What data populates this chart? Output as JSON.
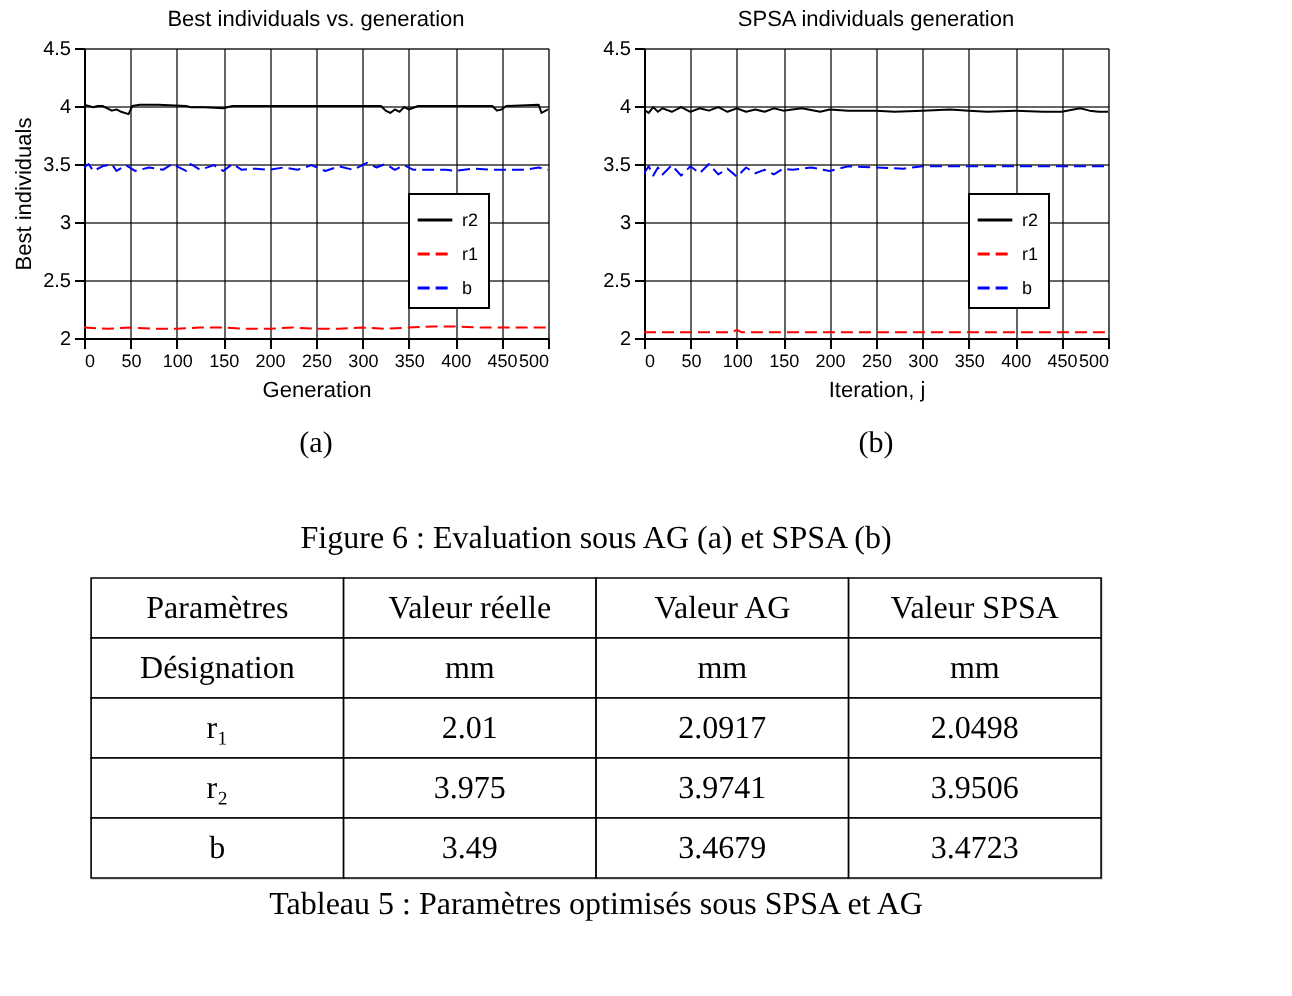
{
  "chart_data": [
    {
      "type": "line",
      "title": "Best individuals vs. generation",
      "xlabel": "Generation",
      "ylabel": "Best individuals",
      "xlim": [
        0,
        500
      ],
      "xticks": [
        0,
        50,
        100,
        150,
        200,
        250,
        300,
        350,
        400,
        450,
        500
      ],
      "ylim": [
        2,
        4.5
      ],
      "yticks": [
        2,
        2.5,
        3,
        3.5,
        4,
        4.5
      ],
      "grid": true,
      "legend": "right",
      "series": [
        {
          "name": "r2",
          "color": "#000000",
          "line_style": "solid",
          "x": [
            0,
            10,
            15,
            20,
            30,
            35,
            40,
            48,
            52,
            60,
            80,
            110,
            115,
            130,
            150,
            160,
            200,
            250,
            300,
            320,
            325,
            330,
            335,
            340,
            345,
            350,
            360,
            400,
            440,
            445,
            450,
            455,
            490,
            493,
            500
          ],
          "values": [
            4.01,
            3.99,
            4.0,
            4.0,
            3.96,
            3.97,
            3.95,
            3.93,
            4.0,
            4.01,
            4.01,
            4.0,
            3.99,
            3.99,
            3.98,
            4.0,
            4.0,
            4.0,
            4.0,
            4.0,
            3.96,
            3.94,
            3.97,
            3.95,
            3.99,
            3.97,
            4.0,
            4.0,
            4.0,
            3.96,
            3.97,
            4.0,
            4.01,
            3.94,
            3.97
          ]
        },
        {
          "name": "r1",
          "color": "#ff0000",
          "line_style": "dashed",
          "x": [
            0,
            25,
            50,
            75,
            100,
            125,
            150,
            175,
            200,
            225,
            250,
            275,
            300,
            325,
            350,
            375,
            400,
            425,
            450,
            475,
            500
          ],
          "values": [
            2.09,
            2.08,
            2.09,
            2.08,
            2.08,
            2.09,
            2.09,
            2.08,
            2.08,
            2.09,
            2.08,
            2.08,
            2.09,
            2.08,
            2.09,
            2.1,
            2.1,
            2.09,
            2.09,
            2.09,
            2.09
          ]
        },
        {
          "name": "b",
          "color": "#0000ff",
          "line_style": "dashed",
          "x": [
            0,
            5,
            10,
            20,
            30,
            35,
            45,
            55,
            70,
            85,
            95,
            110,
            115,
            125,
            140,
            150,
            160,
            170,
            185,
            200,
            215,
            230,
            245,
            260,
            275,
            290,
            305,
            315,
            325,
            335,
            345,
            355,
            375,
            390,
            400,
            420,
            440,
            460,
            475,
            490,
            500
          ],
          "values": [
            3.47,
            3.5,
            3.44,
            3.48,
            3.5,
            3.44,
            3.49,
            3.44,
            3.47,
            3.45,
            3.5,
            3.44,
            3.5,
            3.45,
            3.49,
            3.44,
            3.5,
            3.45,
            3.46,
            3.45,
            3.47,
            3.45,
            3.49,
            3.44,
            3.48,
            3.45,
            3.51,
            3.47,
            3.5,
            3.45,
            3.49,
            3.45,
            3.45,
            3.45,
            3.44,
            3.46,
            3.45,
            3.45,
            3.45,
            3.47,
            3.45
          ]
        }
      ],
      "annotations": [
        "(a)"
      ]
    },
    {
      "type": "line",
      "title": "SPSA individuals generation",
      "xlabel": "Iteration, j",
      "xlim": [
        0,
        500
      ],
      "xticks": [
        0,
        50,
        100,
        150,
        200,
        250,
        300,
        350,
        400,
        450,
        500
      ],
      "ylim": [
        2,
        4.5
      ],
      "yticks": [
        2,
        2.5,
        3,
        3.5,
        4,
        4.5
      ],
      "grid": true,
      "legend": "right",
      "series": [
        {
          "name": "r2",
          "color": "#000000",
          "line_style": "solid",
          "x": [
            0,
            5,
            10,
            15,
            20,
            30,
            40,
            50,
            60,
            70,
            80,
            90,
            100,
            110,
            120,
            130,
            140,
            150,
            170,
            190,
            200,
            220,
            250,
            270,
            300,
            330,
            350,
            370,
            400,
            430,
            450,
            470,
            480,
            490,
            500
          ],
          "values": [
            3.97,
            3.94,
            3.99,
            3.95,
            3.98,
            3.95,
            3.99,
            3.95,
            3.98,
            3.96,
            3.99,
            3.95,
            3.98,
            3.95,
            3.97,
            3.95,
            3.98,
            3.96,
            3.98,
            3.95,
            3.97,
            3.96,
            3.96,
            3.95,
            3.96,
            3.97,
            3.96,
            3.95,
            3.96,
            3.95,
            3.95,
            3.98,
            3.96,
            3.95,
            3.95
          ]
        },
        {
          "name": "r1",
          "color": "#ff0000",
          "line_style": "dashed",
          "x": [
            0,
            50,
            95,
            100,
            105,
            150,
            200,
            250,
            300,
            350,
            400,
            450,
            500
          ],
          "values": [
            2.05,
            2.05,
            2.05,
            2.07,
            2.05,
            2.05,
            2.05,
            2.05,
            2.05,
            2.05,
            2.05,
            2.05,
            2.05
          ]
        },
        {
          "name": "b",
          "color": "#0000ff",
          "line_style": "dashed",
          "x": [
            0,
            5,
            10,
            15,
            20,
            30,
            40,
            50,
            60,
            70,
            80,
            90,
            100,
            110,
            120,
            130,
            140,
            150,
            160,
            180,
            200,
            220,
            250,
            280,
            300,
            350,
            400,
            450,
            500
          ],
          "values": [
            3.42,
            3.48,
            3.4,
            3.47,
            3.41,
            3.49,
            3.4,
            3.48,
            3.42,
            3.5,
            3.41,
            3.46,
            3.39,
            3.47,
            3.42,
            3.45,
            3.41,
            3.46,
            3.45,
            3.47,
            3.44,
            3.48,
            3.47,
            3.46,
            3.48,
            3.48,
            3.48,
            3.48,
            3.48
          ]
        }
      ],
      "annotations": [
        "(b)"
      ]
    },
    {
      "type": "other",
      "categories": [
        "Paramètres",
        "Valeur réelle",
        "Valeur AG",
        "Valeur SPSA"
      ],
      "y_categories": [
        "Désignation",
        "r₁",
        "r₂",
        "b"
      ],
      "cell_labels": [
        [
          "mm",
          "mm",
          "mm"
        ],
        [
          "2.01",
          "2.0917",
          "2.0498"
        ],
        [
          "3.975",
          "3.9741",
          "3.9506"
        ],
        [
          "3.49",
          "3.4679",
          "3.4723"
        ]
      ],
      "annotations": [
        "Figure 6 : Evaluation sous AG (a) et SPSA (b)",
        "Tableau 5 : Paramètres optimisés sous SPSA et AG"
      ]
    }
  ]
}
